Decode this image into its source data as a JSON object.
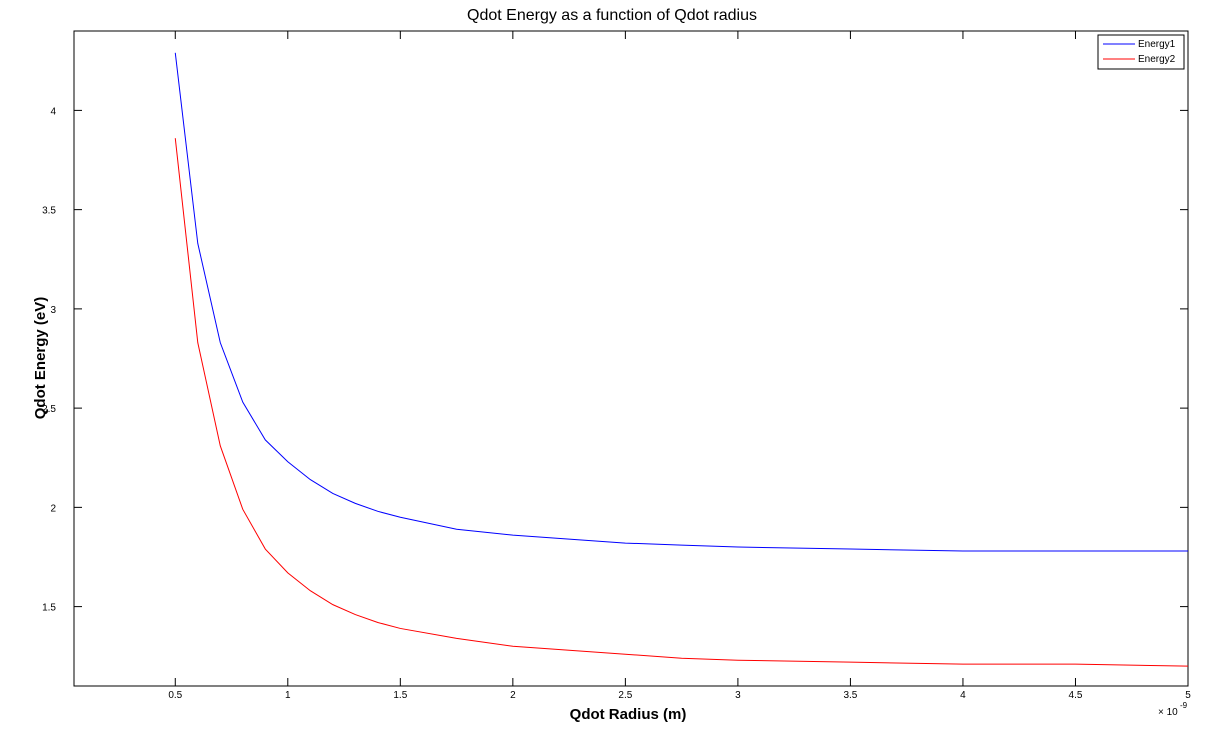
{
  "chart_data": {
    "type": "line",
    "title": "Qdot Energy as a function of Qdot radius",
    "xlabel": "Qdot Radius (m)",
    "ylabel": "Qdot Energy (eV)",
    "x_exponent_label": "× 10",
    "x_exponent_power": "-9",
    "xlim": [
      0.05,
      5.0
    ],
    "ylim": [
      1.1,
      4.4
    ],
    "x_ticks": [
      0.5,
      1,
      1.5,
      2,
      2.5,
      3,
      3.5,
      4,
      4.5,
      5
    ],
    "x_tick_labels": [
      "0.5",
      "1",
      "1.5",
      "2",
      "2.5",
      "3",
      "3.5",
      "4",
      "4.5",
      "5"
    ],
    "y_ticks": [
      1.5,
      2,
      2.5,
      3,
      3.5,
      4
    ],
    "y_tick_labels": [
      "1.5",
      "2",
      "2.5",
      "3",
      "3.5",
      "4"
    ],
    "legend_position": "top-right",
    "grid": false,
    "x": [
      0.5,
      0.6,
      0.7,
      0.8,
      0.9,
      1.0,
      1.1,
      1.2,
      1.3,
      1.4,
      1.5,
      1.75,
      2.0,
      2.25,
      2.5,
      2.75,
      3.0,
      3.5,
      4.0,
      4.5,
      5.0
    ],
    "series": [
      {
        "name": "Energy1",
        "color": "#0000ff",
        "values": [
          4.29,
          3.33,
          2.83,
          2.53,
          2.34,
          2.23,
          2.14,
          2.07,
          2.02,
          1.98,
          1.95,
          1.89,
          1.86,
          1.84,
          1.82,
          1.81,
          1.8,
          1.79,
          1.78,
          1.78,
          1.78
        ]
      },
      {
        "name": "Energy2",
        "color": "#ff0000",
        "values": [
          3.86,
          2.83,
          2.31,
          1.99,
          1.79,
          1.67,
          1.58,
          1.51,
          1.46,
          1.42,
          1.39,
          1.34,
          1.3,
          1.28,
          1.26,
          1.24,
          1.23,
          1.22,
          1.21,
          1.21,
          1.2
        ]
      }
    ]
  }
}
